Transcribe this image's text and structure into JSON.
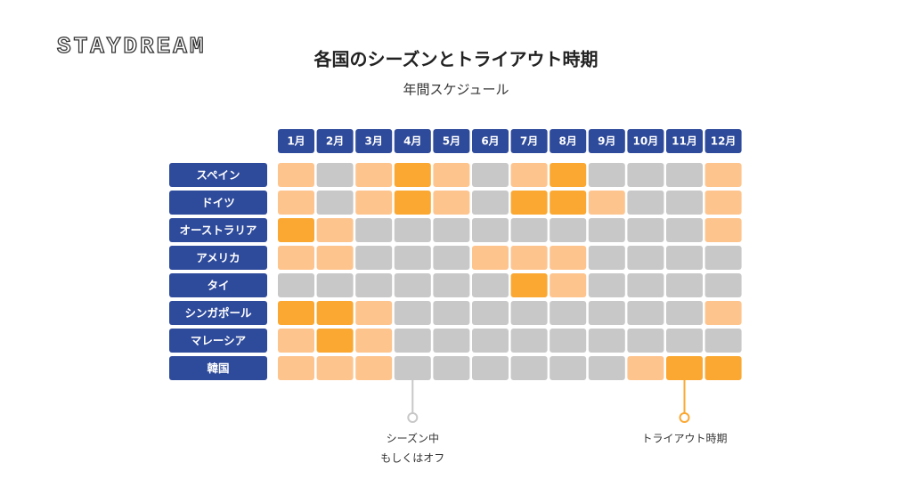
{
  "header": {
    "logo": "STAYDREAM",
    "title": "各国のシーズンとトライアウト時期",
    "subtitle": "年間スケジュール"
  },
  "months": [
    "1月",
    "2月",
    "3月",
    "4月",
    "5月",
    "6月",
    "7月",
    "8月",
    "9月",
    "10月",
    "11月",
    "12月"
  ],
  "palette": [
    "#c8c8c8",
    "#fec48e",
    "#fba832"
  ],
  "rows": [
    {
      "name": "スペイン",
      "cells": [
        1,
        0,
        1,
        2,
        1,
        0,
        1,
        2,
        0,
        0,
        0,
        1
      ]
    },
    {
      "name": "ドイツ",
      "cells": [
        1,
        0,
        1,
        2,
        1,
        0,
        2,
        2,
        1,
        0,
        0,
        1
      ]
    },
    {
      "name": "オーストラリア",
      "cells": [
        2,
        1,
        0,
        0,
        0,
        0,
        0,
        0,
        0,
        0,
        0,
        1
      ]
    },
    {
      "name": "アメリカ",
      "cells": [
        1,
        1,
        0,
        0,
        0,
        1,
        1,
        1,
        0,
        0,
        0,
        0
      ]
    },
    {
      "name": "タイ",
      "cells": [
        0,
        0,
        0,
        0,
        0,
        0,
        2,
        1,
        0,
        0,
        0,
        0
      ]
    },
    {
      "name": "シンガポール",
      "cells": [
        2,
        2,
        1,
        0,
        0,
        0,
        0,
        0,
        0,
        0,
        0,
        1
      ]
    },
    {
      "name": "マレーシア",
      "cells": [
        1,
        2,
        1,
        0,
        0,
        0,
        0,
        0,
        0,
        0,
        0,
        0
      ]
    },
    {
      "name": "韓国",
      "cells": [
        1,
        1,
        1,
        0,
        0,
        0,
        0,
        0,
        0,
        1,
        2,
        2
      ]
    }
  ],
  "legend": [
    {
      "state": 0,
      "column": 3,
      "lines": [
        "シーズン中",
        "もしくはオフ"
      ]
    },
    {
      "state": 2,
      "column": 10,
      "lines": [
        "トライアウト時期"
      ]
    }
  ]
}
